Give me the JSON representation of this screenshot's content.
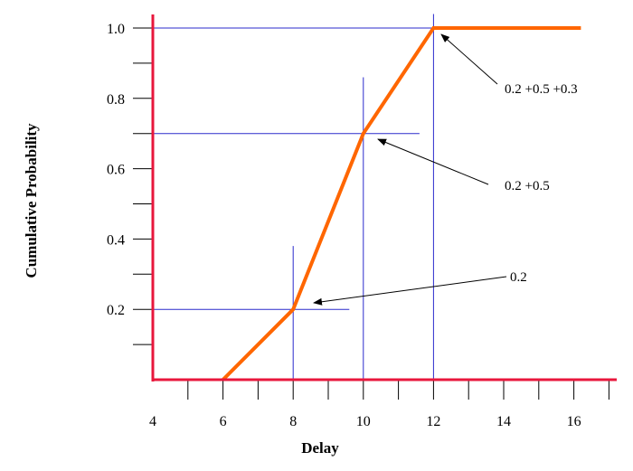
{
  "chart_data": {
    "type": "line",
    "title": "",
    "xlabel": "Delay",
    "ylabel": "Cumulative Probability",
    "xlim": [
      4,
      17
    ],
    "ylim": [
      0,
      1.0
    ],
    "x_ticks": [
      4,
      6,
      8,
      10,
      12,
      14,
      16
    ],
    "x_tick_labels": [
      "4",
      "6",
      "8",
      "10",
      "12",
      "14",
      "16"
    ],
    "y_ticks": [
      0.2,
      0.4,
      0.6,
      0.8,
      1.0
    ],
    "y_tick_labels": [
      "0.2",
      "0.4",
      "0.6",
      "0.8",
      "1.0"
    ],
    "series": [
      {
        "x": [
          6,
          8,
          10,
          12,
          16.2
        ],
        "y": [
          0,
          0.2,
          0.7,
          1.0,
          1.0
        ],
        "color": "#ff6600"
      }
    ],
    "reference_lines": [
      {
        "orientation": "horizontal",
        "y": 0.2,
        "x_from": 4,
        "x_to": 9.6
      },
      {
        "orientation": "horizontal",
        "y": 0.7,
        "x_from": 4,
        "x_to": 11.6
      },
      {
        "orientation": "horizontal",
        "y": 1.0,
        "x_from": 4,
        "x_to": 12
      },
      {
        "orientation": "vertical",
        "x": 8,
        "y_from": 0,
        "y_to": 0.38
      },
      {
        "orientation": "vertical",
        "x": 10,
        "y_from": 0,
        "y_to": 0.86
      },
      {
        "orientation": "vertical",
        "x": 12,
        "y_from": 0,
        "y_to": 1.04
      }
    ],
    "annotations": [
      {
        "text": "0.2 +0.5 +0.3",
        "points_to": [
          12,
          1.0
        ]
      },
      {
        "text": "0.2 +0.5",
        "points_to": [
          10,
          0.7
        ]
      },
      {
        "text": "0.2",
        "points_to": [
          8,
          0.2
        ]
      }
    ],
    "grid": false,
    "legend": "none"
  },
  "colors": {
    "axis": "#e8173c",
    "line": "#ff6600",
    "reference": "#2b2bcc",
    "arrow": "#000000"
  }
}
